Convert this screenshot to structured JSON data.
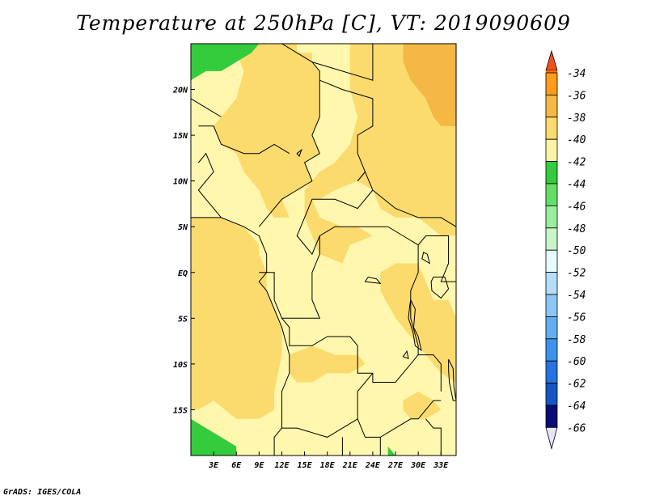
{
  "title": "Temperature at 250hPa [C], VT: 2019090609",
  "credit": "GrADS: IGES/COLA",
  "map": {
    "lon_range": [
      0,
      35
    ],
    "lat_range": [
      -20,
      25
    ],
    "lon_ticks": [
      {
        "lon": 3,
        "label": "3E"
      },
      {
        "lon": 6,
        "label": "6E"
      },
      {
        "lon": 9,
        "label": "9E"
      },
      {
        "lon": 12,
        "label": "12E"
      },
      {
        "lon": 15,
        "label": "15E"
      },
      {
        "lon": 18,
        "label": "18E"
      },
      {
        "lon": 21,
        "label": "21E"
      },
      {
        "lon": 24,
        "label": "24E"
      },
      {
        "lon": 27,
        "label": "27E"
      },
      {
        "lon": 30,
        "label": "30E"
      },
      {
        "lon": 33,
        "label": "33E"
      }
    ],
    "lat_ticks": [
      {
        "lat": 20,
        "label": "20N"
      },
      {
        "lat": 15,
        "label": "15N"
      },
      {
        "lat": 10,
        "label": "10N"
      },
      {
        "lat": 5,
        "label": "5N"
      },
      {
        "lat": 0,
        "label": "EQ"
      },
      {
        "lat": -5,
        "label": "5S"
      },
      {
        "lat": -10,
        "label": "10S"
      },
      {
        "lat": -15,
        "label": "15S"
      }
    ],
    "base_level": "-42",
    "regions": [
      {
        "level": "-40",
        "polygon": [
          [
            6,
            25
          ],
          [
            14,
            25
          ],
          [
            14,
            24
          ],
          [
            16,
            24
          ],
          [
            16,
            23
          ],
          [
            17,
            22
          ],
          [
            17,
            20
          ],
          [
            17,
            17
          ],
          [
            16,
            15
          ],
          [
            17,
            13
          ],
          [
            15,
            12
          ],
          [
            16,
            10
          ],
          [
            14,
            9
          ],
          [
            12,
            8
          ],
          [
            13,
            6
          ],
          [
            11,
            6
          ],
          [
            10,
            7
          ],
          [
            9,
            9
          ],
          [
            8,
            10
          ],
          [
            7,
            11
          ],
          [
            6,
            13
          ],
          [
            4,
            14
          ],
          [
            3,
            16
          ],
          [
            4,
            17
          ],
          [
            6,
            19
          ],
          [
            7,
            22
          ],
          [
            6,
            24
          ]
        ]
      },
      {
        "level": "-40",
        "polygon": [
          [
            21,
            25
          ],
          [
            35,
            25
          ],
          [
            35,
            4
          ],
          [
            33,
            4
          ],
          [
            30,
            6
          ],
          [
            27,
            6
          ],
          [
            25,
            7
          ],
          [
            24,
            9
          ],
          [
            22,
            10
          ],
          [
            19,
            9
          ],
          [
            17,
            8
          ],
          [
            16,
            8
          ],
          [
            17,
            6
          ],
          [
            20,
            5
          ],
          [
            22,
            5
          ],
          [
            24,
            4
          ],
          [
            21,
            3
          ],
          [
            20,
            1
          ],
          [
            17,
            2
          ],
          [
            16,
            4
          ],
          [
            15,
            6
          ],
          [
            15,
            9
          ],
          [
            17,
            11
          ],
          [
            19,
            12
          ],
          [
            21,
            14
          ],
          [
            22,
            17
          ],
          [
            21,
            20
          ]
        ]
      },
      {
        "level": "-40",
        "polygon": [
          [
            0,
            6
          ],
          [
            2,
            6
          ],
          [
            4,
            6
          ],
          [
            7,
            5
          ],
          [
            9,
            3
          ],
          [
            9,
            2
          ],
          [
            10,
            0
          ],
          [
            10,
            -2
          ],
          [
            11,
            -4
          ],
          [
            12,
            -6
          ],
          [
            12,
            -9
          ],
          [
            11,
            -13
          ],
          [
            11,
            -15
          ],
          [
            9,
            -16
          ],
          [
            6,
            -16
          ],
          [
            3,
            -14
          ],
          [
            1,
            -15
          ],
          [
            0,
            -15
          ]
        ]
      },
      {
        "level": "-40",
        "polygon": [
          [
            13,
            -9
          ],
          [
            16,
            -8
          ],
          [
            19,
            -9
          ],
          [
            22,
            -9
          ],
          [
            23,
            -10
          ],
          [
            21,
            -11
          ],
          [
            18,
            -11
          ],
          [
            16,
            -12
          ],
          [
            14,
            -12
          ],
          [
            13,
            -11
          ]
        ]
      },
      {
        "level": "-40",
        "polygon": [
          [
            27,
            1
          ],
          [
            30,
            1
          ],
          [
            31,
            -1
          ],
          [
            32,
            -3
          ],
          [
            34,
            -3
          ],
          [
            35,
            -5
          ],
          [
            35,
            -12
          ],
          [
            33,
            -11
          ],
          [
            31,
            -9
          ],
          [
            29,
            -7
          ],
          [
            27,
            -5
          ],
          [
            25,
            -2
          ],
          [
            25,
            0
          ]
        ]
      },
      {
        "level": "-40",
        "polygon": [
          [
            28,
            -14
          ],
          [
            30,
            -13
          ],
          [
            32,
            -14
          ],
          [
            33,
            -15
          ],
          [
            31,
            -16
          ],
          [
            29,
            -16
          ],
          [
            28,
            -15
          ]
        ]
      },
      {
        "level": "-38",
        "polygon": [
          [
            28,
            25
          ],
          [
            35,
            25
          ],
          [
            35,
            16
          ],
          [
            33,
            16
          ],
          [
            32,
            17
          ],
          [
            31,
            19
          ],
          [
            29,
            21
          ],
          [
            28,
            23
          ]
        ]
      },
      {
        "level": "-44",
        "polygon": [
          [
            0,
            25
          ],
          [
            9,
            25
          ],
          [
            8,
            24
          ],
          [
            6,
            23
          ],
          [
            4,
            22
          ],
          [
            2,
            22
          ],
          [
            0,
            21
          ]
        ]
      },
      {
        "level": "-44",
        "polygon": [
          [
            0,
            -20
          ],
          [
            6,
            -20
          ],
          [
            6,
            -19
          ],
          [
            4,
            -18
          ],
          [
            2,
            -17
          ],
          [
            0,
            -16
          ]
        ]
      },
      {
        "level": "-44",
        "polygon": [
          [
            26,
            -19
          ],
          [
            26,
            -20
          ],
          [
            27,
            -20
          ]
        ]
      }
    ],
    "borders": [
      [
        [
          12,
          25
        ],
        [
          14,
          24
        ],
        [
          16,
          23
        ],
        [
          17,
          22
        ],
        [
          17,
          20
        ],
        [
          17,
          17
        ],
        [
          16,
          15
        ],
        [
          17,
          13
        ],
        [
          15,
          12
        ],
        [
          16,
          10
        ],
        [
          14,
          9
        ],
        [
          12,
          8
        ],
        [
          11,
          7
        ],
        [
          9,
          5
        ]
      ],
      [
        [
          16,
          23
        ],
        [
          24,
          21
        ],
        [
          24,
          25
        ]
      ],
      [
        [
          17,
          21
        ],
        [
          20,
          20
        ],
        [
          24,
          19
        ],
        [
          24,
          16
        ],
        [
          22,
          15
        ],
        [
          22,
          13
        ],
        [
          23,
          11
        ],
        [
          22,
          10
        ]
      ],
      [
        [
          22,
          10
        ],
        [
          23,
          11
        ],
        [
          24,
          9
        ],
        [
          27,
          7
        ],
        [
          30,
          6
        ],
        [
          33,
          6
        ],
        [
          35,
          5
        ]
      ],
      [
        [
          24,
          9
        ],
        [
          22,
          7
        ],
        [
          19,
          8
        ],
        [
          16,
          8
        ],
        [
          15,
          6
        ],
        [
          14,
          4
        ],
        [
          16,
          2
        ],
        [
          17,
          4
        ],
        [
          19,
          5
        ],
        [
          22,
          5
        ],
        [
          26,
          5
        ],
        [
          28,
          4
        ],
        [
          30,
          3
        ]
      ],
      [
        [
          30,
          3
        ],
        [
          30,
          0
        ],
        [
          29,
          -2
        ],
        [
          29,
          -5
        ],
        [
          30,
          -8
        ],
        [
          30,
          -9
        ],
        [
          32,
          -9
        ],
        [
          33,
          -10
        ],
        [
          33,
          -13
        ]
      ],
      [
        [
          30,
          3
        ],
        [
          31,
          4
        ],
        [
          34,
          4
        ],
        [
          34,
          1
        ],
        [
          33,
          -1
        ],
        [
          35,
          -1
        ]
      ],
      [
        [
          17,
          4
        ],
        [
          17,
          2
        ],
        [
          16,
          0
        ],
        [
          16,
          -3
        ],
        [
          17,
          -5
        ],
        [
          14,
          -5
        ],
        [
          12,
          -5
        ],
        [
          11,
          -3
        ],
        [
          11,
          0
        ],
        [
          9,
          0
        ]
      ],
      [
        [
          12,
          -5
        ],
        [
          13,
          -6
        ],
        [
          13,
          -8
        ],
        [
          16,
          -8
        ],
        [
          18,
          -7
        ],
        [
          21,
          -7
        ],
        [
          22,
          -8
        ],
        [
          22,
          -11
        ],
        [
          24,
          -11
        ],
        [
          24,
          -12
        ],
        [
          25,
          -12
        ],
        [
          27,
          -12
        ],
        [
          28,
          -11
        ],
        [
          30,
          -9
        ]
      ],
      [
        [
          24,
          -11
        ],
        [
          22,
          -13
        ],
        [
          22,
          -16
        ],
        [
          23,
          -18
        ],
        [
          25,
          -18
        ],
        [
          27,
          -17
        ],
        [
          29,
          -16
        ],
        [
          30,
          -16
        ],
        [
          32,
          -14
        ],
        [
          33,
          -14
        ]
      ],
      [
        [
          22,
          -16
        ],
        [
          18,
          -18
        ],
        [
          14,
          -17
        ],
        [
          12,
          -17
        ]
      ],
      [
        [
          20,
          -18
        ],
        [
          20,
          -20
        ]
      ],
      [
        [
          25,
          -18
        ],
        [
          25,
          -20
        ]
      ],
      [
        [
          31,
          -16
        ],
        [
          32,
          -17
        ],
        [
          33,
          -17
        ],
        [
          33,
          -20
        ]
      ],
      [
        [
          0,
          6
        ],
        [
          2,
          6
        ],
        [
          4,
          6
        ],
        [
          7,
          5
        ],
        [
          9,
          4
        ],
        [
          10,
          2
        ],
        [
          10,
          0
        ],
        [
          9,
          -1
        ],
        [
          10,
          -2
        ],
        [
          11,
          -4
        ],
        [
          12,
          -6
        ],
        [
          13,
          -9
        ],
        [
          13,
          -11
        ],
        [
          12,
          -13
        ],
        [
          12,
          -15
        ],
        [
          12,
          -17
        ],
        [
          11,
          -18
        ],
        [
          11,
          -20
        ]
      ],
      [
        [
          1,
          12
        ],
        [
          2,
          13
        ],
        [
          3,
          11
        ],
        [
          2,
          10
        ],
        [
          1,
          9
        ],
        [
          2,
          8
        ],
        [
          3,
          7
        ],
        [
          4,
          6
        ]
      ],
      [
        [
          1,
          16
        ],
        [
          3,
          16
        ],
        [
          4,
          14
        ],
        [
          7,
          13
        ],
        [
          9,
          13
        ],
        [
          11,
          14
        ],
        [
          13,
          13
        ]
      ],
      [
        [
          4,
          17
        ],
        [
          2,
          18
        ],
        [
          0,
          19
        ]
      ]
    ],
    "lakes": [
      [
        [
          29,
          -3
        ],
        [
          29.6,
          -4
        ],
        [
          29.4,
          -6
        ],
        [
          30,
          -7
        ],
        [
          30.4,
          -8.5
        ],
        [
          29.6,
          -8
        ],
        [
          29.3,
          -6.5
        ],
        [
          28.7,
          -5
        ],
        [
          28.9,
          -3.5
        ]
      ],
      [
        [
          32,
          -0.5
        ],
        [
          33.5,
          -0.5
        ],
        [
          34,
          -1.8
        ],
        [
          33,
          -2.8
        ],
        [
          31.8,
          -2
        ],
        [
          31.7,
          -1
        ]
      ],
      [
        [
          34,
          -9.5
        ],
        [
          34.6,
          -10.5
        ],
        [
          34.7,
          -12.5
        ],
        [
          35,
          -14
        ],
        [
          34.6,
          -14
        ],
        [
          34.1,
          -12
        ],
        [
          34,
          -10.6
        ]
      ],
      [
        [
          30.5,
          1.5
        ],
        [
          31.5,
          1
        ],
        [
          31.2,
          2
        ],
        [
          30.7,
          2.2
        ]
      ],
      [
        [
          14,
          13
        ],
        [
          14.6,
          13.4
        ],
        [
          14.3,
          12.7
        ]
      ],
      [
        [
          23,
          -1
        ],
        [
          25,
          -1.2
        ],
        [
          24.5,
          -0.7
        ],
        [
          23.4,
          -0.5
        ]
      ],
      [
        [
          28,
          -9.2
        ],
        [
          28.7,
          -9.4
        ],
        [
          28.5,
          -8.6
        ]
      ]
    ]
  },
  "colorbar": {
    "levels": [
      {
        "label": "-34",
        "color": "#ffb43e"
      },
      {
        "label": "-36",
        "color": "#ff9c1e"
      },
      {
        "label": "-38",
        "color": "#f5b845"
      },
      {
        "label": "-40",
        "color": "#fbdb6e"
      },
      {
        "label": "-42",
        "color": "#fdf3a8"
      },
      {
        "label": "-44",
        "color": "#34cc3c"
      },
      {
        "label": "-46",
        "color": "#66dd66"
      },
      {
        "label": "-48",
        "color": "#98ee99"
      },
      {
        "label": "-50",
        "color": "#c9f6cb"
      },
      {
        "label": "-52",
        "color": "#e6fbfb"
      },
      {
        "label": "-54",
        "color": "#b6dcf6"
      },
      {
        "label": "-56",
        "color": "#8dc6f3"
      },
      {
        "label": "-58",
        "color": "#62aef1"
      },
      {
        "label": "-60",
        "color": "#3d92ec"
      },
      {
        "label": "-62",
        "color": "#2373e3"
      },
      {
        "label": "-64",
        "color": "#1556c4"
      },
      {
        "label": "-66",
        "color": "#080c74"
      }
    ],
    "top_color": "#f0501e",
    "top_over_color": "#fc6b0a",
    "bottom_color": "#e8e4f8"
  },
  "colors": {
    "land_base": "#fff7ad",
    "outline": "#000000"
  }
}
